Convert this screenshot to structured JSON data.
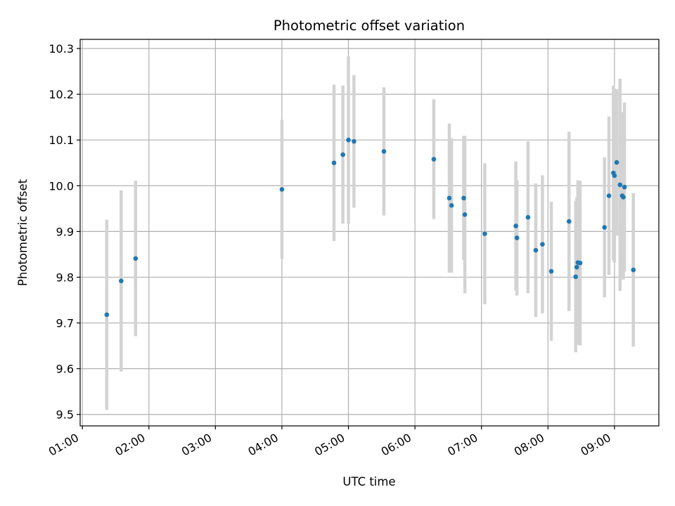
{
  "chart_data": {
    "type": "scatter",
    "title": "Photometric offset variation",
    "xlabel": "UTC time",
    "ylabel": "Photometric offset",
    "grid": true,
    "xlim": [
      "00:58",
      "09:40"
    ],
    "ylim": [
      9.475,
      10.32
    ],
    "x_ticks": [
      "01:00",
      "02:00",
      "03:00",
      "04:00",
      "05:00",
      "06:00",
      "07:00",
      "08:00",
      "09:00"
    ],
    "y_ticks": [
      9.5,
      9.6,
      9.7,
      9.8,
      9.9,
      10.0,
      10.1,
      10.2,
      10.3
    ],
    "colors": {
      "point": "#1f77b4",
      "errorbar": "#d3d3d3",
      "grid": "#b0b0b0"
    },
    "series": [
      {
        "x": [
          "01:22",
          "01:35",
          "01:48",
          "04:00",
          "04:47",
          "04:55",
          "05:00",
          "05:05",
          "05:32",
          "06:17",
          "06:31",
          "06:33",
          "06:44",
          "06:45",
          "07:03",
          "07:31",
          "07:32",
          "07:42",
          "07:49",
          "07:55",
          "08:03",
          "08:19",
          "08:25",
          "08:26",
          "08:27",
          "08:29",
          "08:51",
          "08:55",
          "08:59",
          "09:00",
          "09:02",
          "09:05",
          "09:07",
          "09:08",
          "09:09",
          "09:17"
        ],
        "y": [
          9.718,
          9.792,
          9.841,
          9.992,
          10.05,
          10.068,
          10.1,
          10.097,
          10.075,
          10.058,
          9.973,
          9.957,
          9.973,
          9.937,
          9.895,
          9.912,
          9.886,
          9.931,
          9.859,
          9.872,
          9.813,
          9.922,
          9.801,
          9.822,
          9.832,
          9.831,
          9.909,
          9.978,
          10.028,
          10.022,
          10.051,
          10.002,
          9.978,
          9.975,
          9.997,
          9.816
        ],
        "yerr": [
          0.208,
          0.198,
          0.17,
          0.152,
          0.171,
          0.151,
          0.183,
          0.145,
          0.14,
          0.131,
          0.163,
          0.147,
          0.136,
          0.172,
          0.154,
          0.141,
          0.126,
          0.166,
          0.146,
          0.151,
          0.152,
          0.196,
          0.165,
          0.153,
          0.18,
          0.18,
          0.153,
          0.173,
          0.191,
          0.19,
          0.16,
          0.232,
          0.183,
          0.18,
          0.185,
          0.168
        ]
      }
    ]
  }
}
